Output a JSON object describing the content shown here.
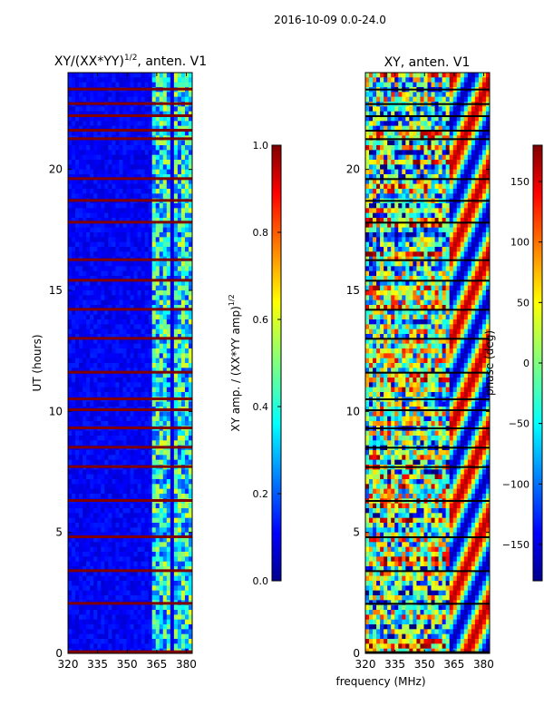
{
  "figure": {
    "suptitle": "2016-10-09 0.0-24.0",
    "xlabel": "frequency (MHz)"
  },
  "chart_data": [
    {
      "type": "heatmap",
      "title_main": "XY/(XX*YY)",
      "title_sup": "1/2",
      "title_rest": ", anten. V1",
      "ylabel": "UT (hours)",
      "x_ticks": [
        "320",
        "335",
        "350",
        "365",
        "380"
      ],
      "x_tick_values": [
        320,
        335,
        350,
        365,
        380
      ],
      "xlim": [
        320,
        383
      ],
      "y_ticks": [
        "0",
        "5",
        "10",
        "15",
        "20"
      ],
      "y_tick_values": [
        0,
        5,
        10,
        15,
        20
      ],
      "ylim": [
        0,
        24
      ],
      "flagged_rows_ut": [
        0.05,
        2.05,
        3.4,
        4.8,
        6.3,
        7.7,
        8.5,
        9.3,
        10.05,
        10.5,
        11.6,
        13.0,
        14.2,
        15.4,
        16.25,
        17.8,
        18.7,
        19.6,
        21.25,
        21.6,
        22.2,
        22.7,
        23.3
      ],
      "colorbar": {
        "label_main": "XY amp. / (XX*YY amp)",
        "label_sup": "1/2",
        "ticks": [
          "0.0",
          "0.2",
          "0.4",
          "0.6",
          "0.8",
          "1.0"
        ],
        "tick_values": [
          0.0,
          0.2,
          0.4,
          0.6,
          0.8,
          1.0
        ],
        "range": [
          0.0,
          1.0
        ]
      }
    },
    {
      "type": "heatmap",
      "title": "XY, anten. V1",
      "x_ticks": [
        "320",
        "335",
        "350",
        "365",
        "380"
      ],
      "x_tick_values": [
        320,
        335,
        350,
        365,
        380
      ],
      "xlim": [
        320,
        383
      ],
      "y_ticks": [
        "0",
        "5",
        "10",
        "15",
        "20"
      ],
      "y_tick_values": [
        0,
        5,
        10,
        15,
        20
      ],
      "ylim": [
        0,
        24
      ],
      "colorbar": {
        "label": "phase (deg)",
        "ticks": [
          "150",
          "100",
          "50",
          "0",
          "−50",
          "−100",
          "−150"
        ],
        "tick_values": [
          150,
          100,
          50,
          0,
          -50,
          -100,
          -150
        ],
        "range": [
          -180,
          180
        ]
      }
    }
  ],
  "colors": {
    "jet_dark_blue": "#00008f",
    "jet_blue": "#0000ff",
    "jet_cyan": "#00ffff",
    "jet_yellow": "#ffff00",
    "jet_red": "#ff0000",
    "jet_dark_red": "#800000"
  }
}
